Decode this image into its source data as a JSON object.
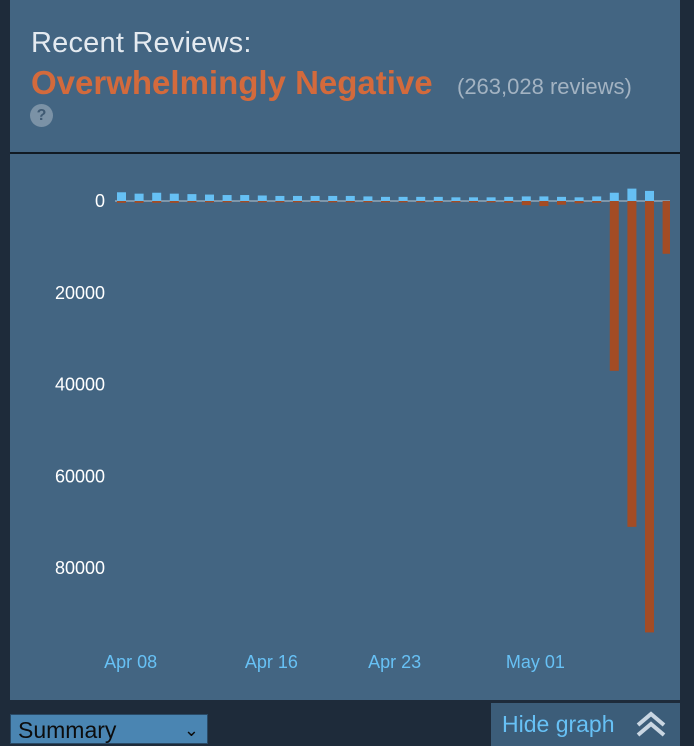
{
  "header": {
    "title": "Recent Reviews:",
    "rating": "Overwhelmingly Negative",
    "count": "(263,028 reviews)",
    "help": "?"
  },
  "footer": {
    "select_value": "Summary",
    "hide_label": "Hide graph"
  },
  "colors": {
    "positive": "#66c0f4",
    "negative": "#a34c25",
    "rating": "#d36a3c"
  },
  "chart_data": {
    "type": "bar",
    "title": "",
    "xlabel": "",
    "ylabel": "",
    "y_ticks": [
      "0",
      "20000",
      "40000",
      "60000",
      "80000"
    ],
    "y_tick_values": [
      0,
      20000,
      40000,
      60000,
      80000
    ],
    "ylim": [
      0,
      95000
    ],
    "x_ticks": [
      "Apr 08",
      "Apr 16",
      "Apr 23",
      "May 01"
    ],
    "x_tick_index": [
      1,
      9,
      16,
      24
    ],
    "series": [
      {
        "kind": "positive",
        "values": [
          1900,
          1600,
          1800,
          1600,
          1500,
          1400,
          1300,
          1300,
          1200,
          1100,
          1100,
          1100,
          1100,
          1100,
          1000,
          900,
          900,
          900,
          900,
          800,
          800,
          800,
          900,
          1000,
          1000,
          900,
          800,
          1000,
          1800,
          2700,
          2200,
          0
        ]
      },
      {
        "kind": "negative",
        "values": [
          400,
          400,
          400,
          400,
          300,
          300,
          300,
          300,
          300,
          300,
          300,
          300,
          300,
          300,
          300,
          300,
          300,
          300,
          300,
          300,
          300,
          300,
          400,
          900,
          1100,
          800,
          500,
          400,
          37000,
          71000,
          94000,
          11500
        ]
      }
    ]
  }
}
